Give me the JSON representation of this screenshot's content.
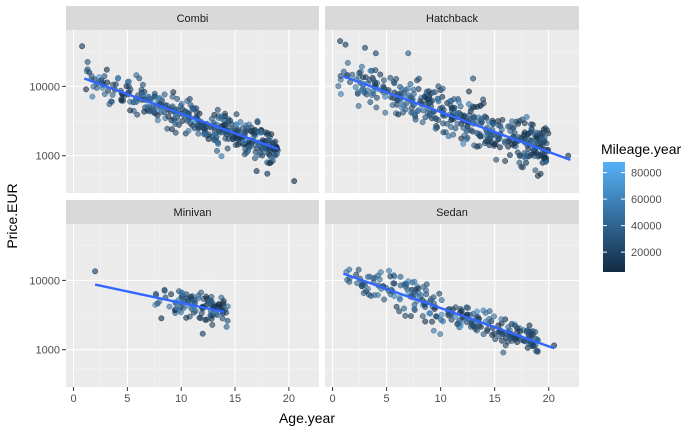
{
  "colors": {
    "panel_bg": "#ebebeb",
    "strip_bg": "#d9d9d9",
    "grid_major": "#ffffff",
    "fit_line": "#3366ff",
    "point_low": "#132b43",
    "point_high": "#56b1f7"
  },
  "chart_data": {
    "type": "scatter",
    "facet_by": "type",
    "panels": [
      {
        "name": "Combi",
        "trend": {
          "x0": 1,
          "y0": 13000,
          "x1": 19,
          "y1": 1250
        },
        "clusters": [
          {
            "x": [
              1,
              19
            ],
            "yfit_noise": 0.12,
            "n": 380
          }
        ],
        "outliers": [
          {
            "x": 0.8,
            "y": 38000,
            "mileage": 20000
          },
          {
            "x": 20.5,
            "y": 430,
            "mileage": 10000
          },
          {
            "x": 18,
            "y": 550,
            "mileage": 15000
          },
          {
            "x": 17,
            "y": 600,
            "mileage": 15000
          }
        ]
      },
      {
        "name": "Hatchback",
        "trend": {
          "x0": 1,
          "y0": 14000,
          "x1": 22,
          "y1": 870
        },
        "clusters": [
          {
            "x": [
              0.5,
              20
            ],
            "yfit_noise": 0.16,
            "n": 420
          }
        ],
        "outliers": [
          {
            "x": 0.7,
            "y": 45000,
            "mileage": 20000
          },
          {
            "x": 1.2,
            "y": 40000,
            "mileage": 20000
          },
          {
            "x": 3,
            "y": 36000,
            "mileage": 25000
          },
          {
            "x": 4,
            "y": 30000,
            "mileage": 25000
          },
          {
            "x": 7,
            "y": 30000,
            "mileage": 40000
          },
          {
            "x": 13,
            "y": 13000,
            "mileage": 30000
          },
          {
            "x": 21.8,
            "y": 1000,
            "mileage": 15000
          }
        ]
      },
      {
        "name": "Minivan",
        "trend": {
          "x0": 2,
          "y0": 8700,
          "x1": 14,
          "y1": 3500
        },
        "clusters": [
          {
            "x": [
              7.5,
              14.5
            ],
            "yfit_noise": 0.1,
            "n": 110
          }
        ],
        "outliers": [
          {
            "x": 2,
            "y": 13500,
            "mileage": 20000
          },
          {
            "x": 12,
            "y": 1700,
            "mileage": 20000
          }
        ]
      },
      {
        "name": "Sedan",
        "trend": {
          "x0": 1,
          "y0": 12500,
          "x1": 20.5,
          "y1": 1050
        },
        "clusters": [
          {
            "x": [
              1,
              19
            ],
            "yfit_noise": 0.12,
            "n": 250
          }
        ],
        "outliers": [
          {
            "x": 20.5,
            "y": 1150,
            "mileage": 15000
          }
        ]
      }
    ],
    "x_axis": {
      "label": "Age.year",
      "lim": [
        -0.7,
        22.8
      ],
      "ticks": [
        0,
        5,
        10,
        15,
        20
      ],
      "tick_labels": [
        "0",
        "5",
        "10",
        "15",
        "20"
      ]
    },
    "y_axis": {
      "label": "Price.EUR",
      "scale": "log10",
      "lim": [
        290,
        65000
      ],
      "ticks": [
        1000,
        10000
      ],
      "tick_labels": [
        "1000",
        "10000"
      ]
    },
    "legend": {
      "title": "Mileage.year",
      "placement": "right",
      "type": "colorbar",
      "range": [
        5000,
        88000
      ],
      "ticks": [
        20000,
        40000,
        60000,
        80000
      ],
      "tick_labels": [
        "20000",
        "40000",
        "60000",
        "80000"
      ]
    },
    "grid": true,
    "smooth_method": "lm"
  }
}
